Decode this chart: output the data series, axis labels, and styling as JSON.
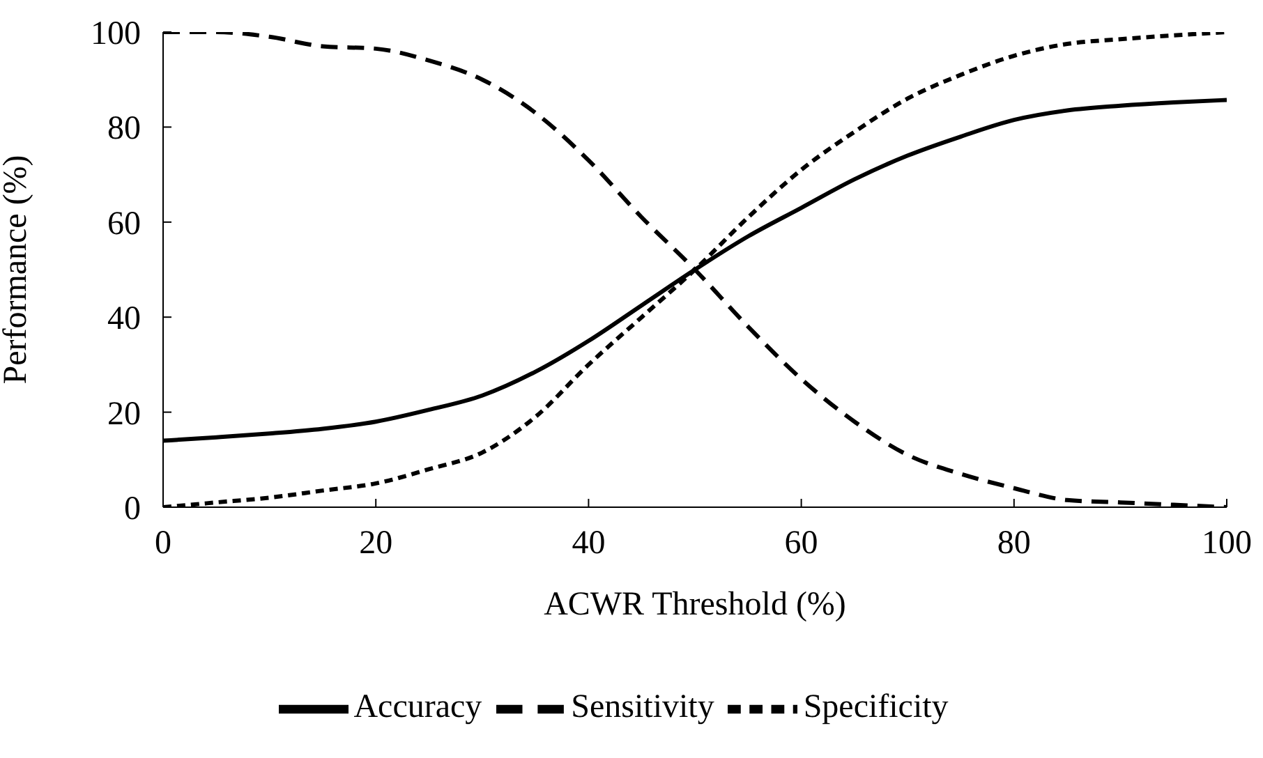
{
  "chart_data": {
    "type": "line",
    "xlabel": "ACWR Threshold (%)",
    "ylabel": "Performance (%)",
    "x": [
      0,
      5,
      10,
      15,
      20,
      25,
      30,
      35,
      40,
      45,
      50,
      55,
      60,
      65,
      70,
      75,
      80,
      85,
      90,
      95,
      100
    ],
    "series": [
      {
        "name": "Accuracy",
        "color": "#000000",
        "line_style": "solid",
        "values": [
          14,
          14.7,
          15.5,
          16.5,
          18,
          20.5,
          23.5,
          28.5,
          35,
          42.5,
          50,
          57,
          63,
          69,
          74,
          78,
          81.5,
          83.5,
          84.5,
          85.2,
          85.7
        ]
      },
      {
        "name": "Sensitivity",
        "color": "#000000",
        "line_style": "dashed",
        "values": [
          100,
          100,
          99,
          97,
          96.5,
          94,
          90,
          83,
          73,
          61,
          50,
          38,
          27,
          18,
          11,
          7,
          4,
          1.5,
          1,
          0.5,
          0
        ]
      },
      {
        "name": "Specificity",
        "color": "#000000",
        "line_style": "dotted",
        "values": [
          0,
          1,
          2,
          3.5,
          5,
          8,
          11.5,
          19,
          30,
          40,
          50,
          61,
          71,
          79,
          86,
          91,
          95,
          97.5,
          98.5,
          99.3,
          100
        ]
      }
    ],
    "xlim": [
      0,
      100
    ],
    "xticks": [
      0,
      20,
      40,
      60,
      80,
      100
    ],
    "ylim": [
      0,
      100
    ],
    "yticks": [
      0,
      20,
      40,
      60,
      80,
      100
    ],
    "grid": false,
    "legend": "bottom",
    "marker": "none"
  }
}
